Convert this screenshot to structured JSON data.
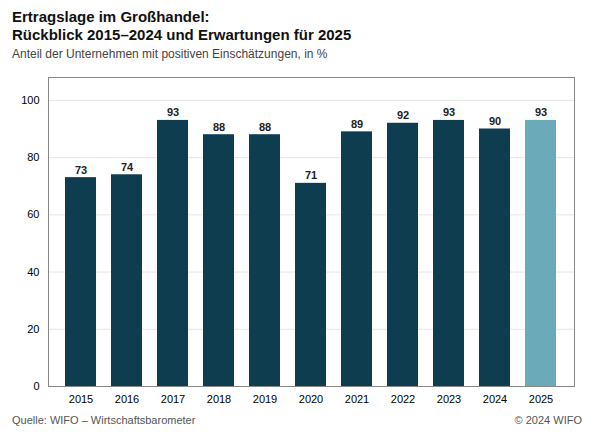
{
  "chart_data": {
    "type": "bar",
    "title": "Ertragslage im Großhandel:\nRückblick 2015–2024 und Erwartungen für 2025",
    "subtitle": "Anteil der Unternehmen mit positiven Einschätzungen, in %",
    "categories": [
      "2015",
      "2016",
      "2017",
      "2018",
      "2019",
      "2020",
      "2021",
      "2022",
      "2023",
      "2024",
      "2025"
    ],
    "values": [
      73,
      74,
      93,
      88,
      88,
      71,
      89,
      92,
      93,
      90,
      93
    ],
    "colors": [
      "#0d3d4f",
      "#0d3d4f",
      "#0d3d4f",
      "#0d3d4f",
      "#0d3d4f",
      "#0d3d4f",
      "#0d3d4f",
      "#0d3d4f",
      "#0d3d4f",
      "#0d3d4f",
      "#6baab8"
    ],
    "ylim": [
      0,
      108
    ],
    "yticks": [
      0,
      20,
      40,
      60,
      80,
      100
    ],
    "grid": true,
    "data_labels": true,
    "annotations": [
      "Quelle: WIFO – Wirtschaftsbarometer",
      "© 2024 WIFO"
    ]
  }
}
